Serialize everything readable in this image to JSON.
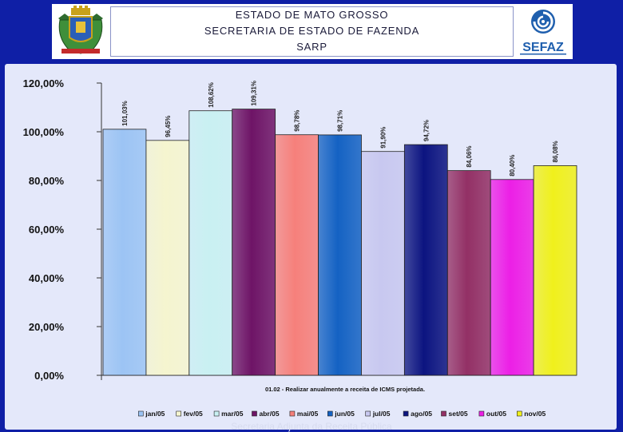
{
  "header": {
    "line1": "ESTADO DE MATO GROSSO",
    "line2": "SECRETARIA DE ESTADO DE FAZENDA",
    "line3": "SARP",
    "logo_text": "SEFAZ"
  },
  "footer": {
    "text": "Secretaria Adjunta da Receita Pública"
  },
  "chart_data": {
    "type": "bar",
    "title": "",
    "caption": "01.02 - Realizar anualmente a receita de ICMS projetada.",
    "xlabel": "",
    "ylabel": "",
    "ylim": [
      0,
      120
    ],
    "y_ticks": [
      "0,00%",
      "20,00%",
      "40,00%",
      "60,00%",
      "80,00%",
      "100,00%",
      "120,00%"
    ],
    "grid": false,
    "legend_position": "bottom",
    "categories": [
      "jan/05",
      "fev/05",
      "mar/05",
      "abr/05",
      "mai/05",
      "jun/05",
      "jul/05",
      "ago/05",
      "set/05",
      "out/05",
      "nov/05"
    ],
    "values": [
      101.03,
      96.45,
      108.62,
      109.31,
      98.78,
      98.71,
      91.9,
      94.72,
      84.06,
      80.4,
      86.08
    ],
    "labels": [
      "101,03%",
      "96,45%",
      "108,62%",
      "109,31%",
      "98,78%",
      "98,71%",
      "91,90%",
      "94,72%",
      "84,06%",
      "80,40%",
      "86,08%"
    ],
    "colors": [
      "#9cc4f4",
      "#f5f5cf",
      "#c9f0f2",
      "#6e1466",
      "#f6807b",
      "#1462c3",
      "#c8c8f0",
      "#0c1480",
      "#933065",
      "#ec1fe6",
      "#f0f01c"
    ]
  }
}
